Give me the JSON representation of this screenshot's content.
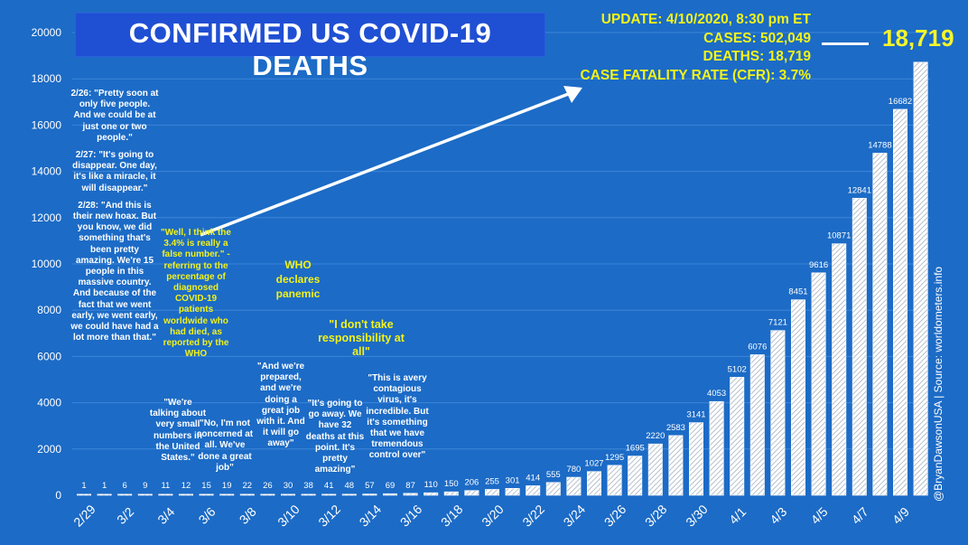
{
  "chart_data": {
    "type": "bar",
    "title": "CONFIRMED US COVID-19 DEATHS",
    "ylim": [
      0,
      20000
    ],
    "yticks": [
      0,
      2000,
      4000,
      6000,
      8000,
      10000,
      12000,
      14000,
      16000,
      18000,
      20000
    ],
    "grid": true,
    "categories": [
      "2/29",
      "3/1",
      "3/2",
      "3/3",
      "3/4",
      "3/5",
      "3/6",
      "3/7",
      "3/8",
      "3/9",
      "3/10",
      "3/11",
      "3/12",
      "3/13",
      "3/14",
      "3/15",
      "3/16",
      "3/17",
      "3/18",
      "3/19",
      "3/20",
      "3/21",
      "3/22",
      "3/23",
      "3/24",
      "3/25",
      "3/26",
      "3/27",
      "3/28",
      "3/29",
      "3/30",
      "3/31",
      "4/1",
      "4/2",
      "4/3",
      "4/4",
      "4/5",
      "4/6",
      "4/7",
      "4/8",
      "4/9",
      "4/10"
    ],
    "xtick_labels": [
      "2/29",
      "3/2",
      "3/4",
      "3/6",
      "3/8",
      "3/10",
      "3/12",
      "3/14",
      "3/16",
      "3/18",
      "3/20",
      "3/22",
      "3/24",
      "3/26",
      "3/28",
      "3/30",
      "4/1",
      "4/3",
      "4/5",
      "4/7",
      "4/9"
    ],
    "values": [
      1,
      1,
      6,
      9,
      11,
      12,
      15,
      19,
      22,
      26,
      30,
      38,
      41,
      48,
      57,
      69,
      87,
      110,
      150,
      206,
      255,
      301,
      414,
      555,
      780,
      1027,
      1295,
      1695,
      2220,
      2583,
      3141,
      4053,
      5102,
      6076,
      7121,
      8451,
      9616,
      10871,
      12841,
      14788,
      16682,
      18719
    ],
    "value_labels": [
      "1",
      "1",
      "6",
      "9",
      "11",
      "12",
      "15",
      "19",
      "22",
      "26",
      "30",
      "38",
      "41",
      "48",
      "57",
      "69",
      "87",
      "110",
      "150",
      "206",
      "255",
      "301",
      "414",
      "555",
      "780",
      "1027",
      "1295",
      "1695",
      "2220",
      "2583",
      "3141",
      "4053",
      "5102",
      "6076",
      "7121",
      "8451",
      "9616",
      "10871",
      "12841",
      "14788",
      "16682",
      ""
    ],
    "last_value_label": "18,719"
  },
  "header": {
    "update": "UPDATE: 4/10/2020, 8:30 pm ET",
    "cases": "CASES: 502,049",
    "deaths": "DEATHS: 18,719",
    "cfr": "CASE FATALITY RATE (CFR): 3.7%"
  },
  "annotations": {
    "quote_226": "2/26: \"Pretty soon at only five people. And we could be at just one or two people.\"",
    "quote_227": "2/27: \"It's going to disappear. One day, it's like a miracle, it will disappear.\"",
    "quote_228": "2/28: \"And this is their new hoax. But you know, we did something that's been pretty amazing. We're 15 people in this massive country. And because of the fact that we went early, we went early, we could have had a lot more than that.\"",
    "false_number": "\"Well, I think the 3.4% is really a false number.\" - referring to the percentage of diagnosed COVID-19 patients worldwide who had died, as reported by the WHO",
    "small_numbers": "\"We're talking about very small numbers in the United States.\"",
    "not_concerned": "\"No, I'm not concerned at all. We've done a great job\"",
    "prepared": "\"And we're prepared, and we're doing a great job with it. And it will go away\"",
    "who_pandemic": "WHO declares panemic",
    "responsibility": "\"I don't take responsibility at all\"",
    "going_away": "\"It's going to go away. We have 32 deaths at this point. It's pretty amazing\"",
    "contagious": "\"This is avery contagious virus, it's incredible. But it's something that we have tremendous control over\""
  },
  "credit": "@BryanDawsonUSA  |  Source: worldometers.info",
  "colors": {
    "background": "#1c6bc6",
    "title_box": "#1f4fd3",
    "highlight": "#f2f21a",
    "bar": "#ffffff"
  }
}
